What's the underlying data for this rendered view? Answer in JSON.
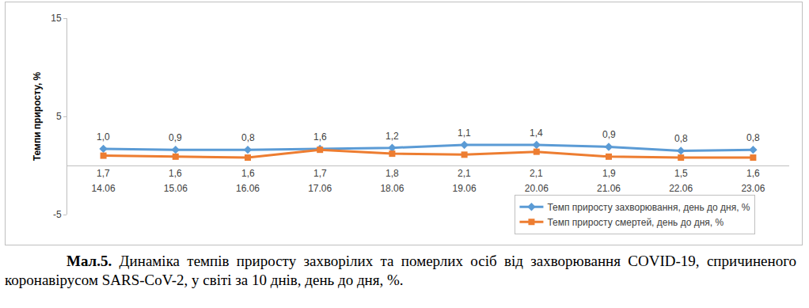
{
  "chart_data": {
    "type": "line",
    "y_label": "Темпи приросту, %",
    "caption_label": "Мал.5.",
    "caption": "Динаміка темпів приросту захворілих та померлих осіб від захворювання COVID-19, спричиненого коронавірусом SARS-CoV-2, у світі за 10 днів, день до дня, %.",
    "categories": [
      "14.06",
      "15.06",
      "16.06",
      "17.06",
      "18.06",
      "19.06",
      "20.06",
      "21.06",
      "22.06",
      "23.06"
    ],
    "series": [
      {
        "name": "Темп приросту захворювання, день до дня, %",
        "color": "#5b9bd5",
        "marker": "diamond",
        "values": [
          1.7,
          1.6,
          1.6,
          1.7,
          1.8,
          2.1,
          2.1,
          1.9,
          1.5,
          1.6
        ],
        "value_labels": [
          "1,7",
          "1,6",
          "1,6",
          "1,7",
          "1,8",
          "2,1",
          "2,1",
          "1,9",
          "1,5",
          "1,6"
        ]
      },
      {
        "name": "Темп приросту смертей, день до дня, %",
        "color": "#ed7d31",
        "marker": "square",
        "values": [
          1.0,
          0.9,
          0.8,
          1.6,
          1.2,
          1.1,
          1.4,
          0.9,
          0.8,
          0.8
        ],
        "value_labels": [
          "1,0",
          "0,9",
          "0,8",
          "1,6",
          "1,2",
          "1,1",
          "1,4",
          "0,9",
          "0,8",
          "0,8"
        ]
      }
    ],
    "ylim": [
      -5,
      15
    ],
    "yticks": [
      -5,
      5,
      15
    ],
    "grid": false,
    "legend": "lower right",
    "data_labels": true
  }
}
